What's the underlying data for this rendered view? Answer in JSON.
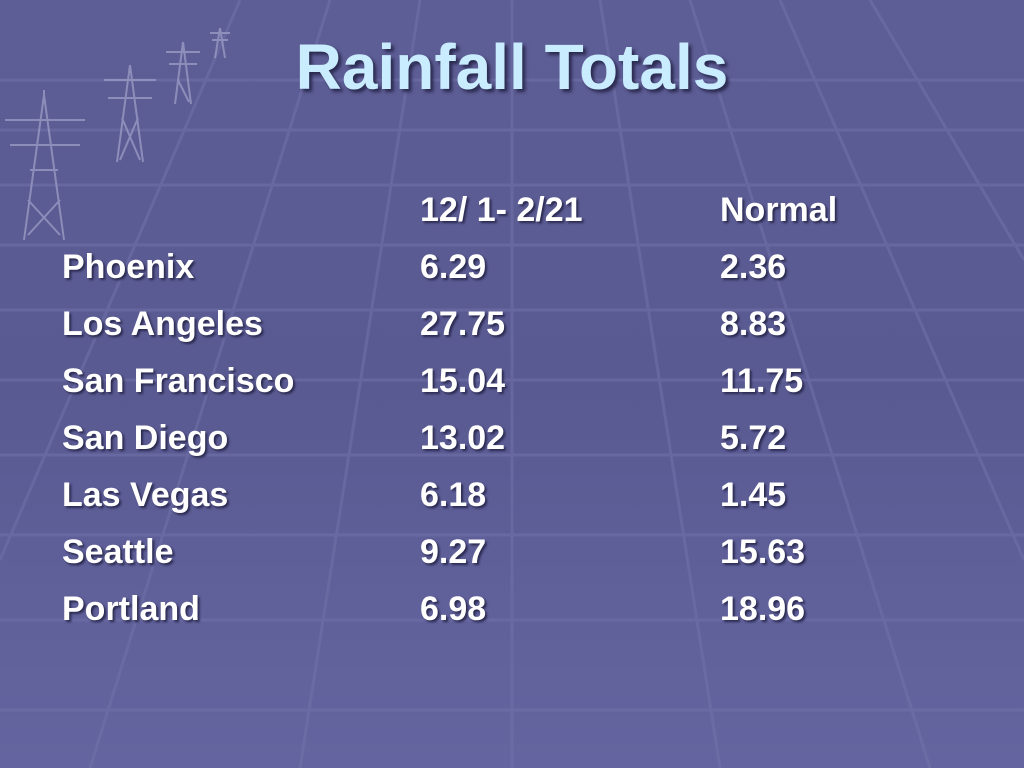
{
  "title": "Rainfall Totals",
  "table": {
    "header": [
      "12/ 1- 2/21",
      "Normal"
    ],
    "rows": [
      [
        "Phoenix",
        "6.29",
        "2.36"
      ],
      [
        "Los Angeles",
        "27.75",
        "8.83"
      ],
      [
        "San Francisco",
        "15.04",
        "11.75"
      ],
      [
        "San Diego",
        "13.02",
        "5.72"
      ],
      [
        "Las Vegas",
        "6.18",
        "1.45"
      ],
      [
        "Seattle",
        "9.27",
        "15.63"
      ],
      [
        "Portland",
        "6.98",
        "18.96"
      ]
    ]
  }
}
